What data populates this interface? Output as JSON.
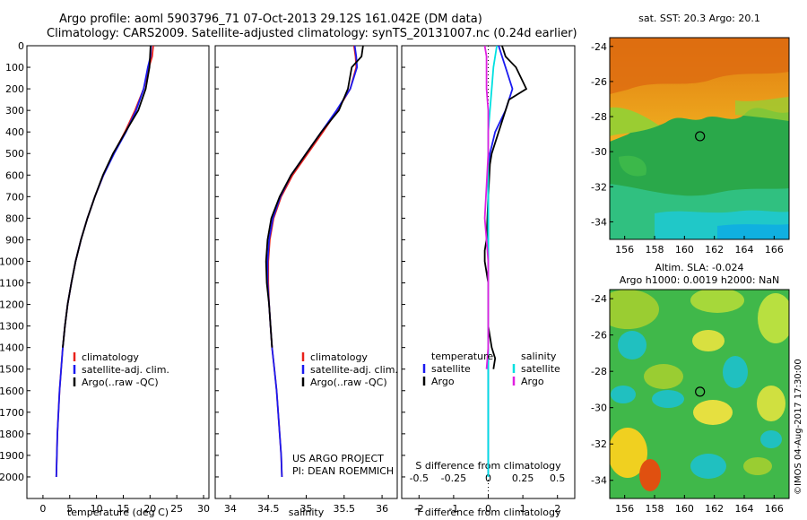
{
  "title_line1": "Argo profile: aoml 5903796_71 07-Oct-2013 29.12S 161.042E (DM data)",
  "title_line2": "Climatology: CARS2009. Satellite-adjusted climatology: synTS_20131007.nc (0.24d earlier)",
  "credit_line1": "US ARGO PROJECT",
  "credit_line2": "PI: DEAN ROEMMICH",
  "sst_title": "sat. SST: 20.3 Argo: 20.1",
  "sla_title1": "Altim. SLA: -0.024",
  "sla_title2": "Argo h1000: 0.0019 h2000: NaN",
  "footer_stamp": "©IMOS 04-Aug-2017 17:30:00",
  "colors": {
    "climatology": "#e8201a",
    "satellite": "#1a1af0",
    "argo": "#000000",
    "sat_salinity": "#00e0e0",
    "argo_salinity": "#e020e0"
  },
  "legend_temp": [
    "climatology",
    "satellite-adj. clim.",
    "Argo(..raw -QC)"
  ],
  "legend_sal": [
    "climatology",
    "satellite-adj. clim.",
    "Argo(..raw -QC)"
  ],
  "legend_diff": {
    "temp_header": "temperature",
    "sal_header": "salinity",
    "temp_items": [
      "satellite",
      "Argo"
    ],
    "sal_items": [
      "satellite",
      "Argo"
    ]
  },
  "chart_data": [
    {
      "type": "line",
      "xlabel": "temperature (deg C)",
      "xlim": [
        -3,
        31
      ],
      "ylim": [
        2100,
        0
      ],
      "xticks": [
        0,
        5,
        10,
        15,
        20,
        25,
        30
      ],
      "yticks": [
        0,
        100,
        200,
        300,
        400,
        500,
        600,
        700,
        800,
        900,
        1000,
        1100,
        1200,
        1300,
        1400,
        1500,
        1600,
        1700,
        1800,
        1900,
        2000
      ],
      "series": [
        {
          "name": "climatology",
          "color": "#e8201a",
          "x": [
            20.6,
            20.4,
            19.8,
            18.8,
            17.2,
            15.3,
            13.2,
            11.3,
            9.7,
            8.3,
            7.1,
            6.1,
            5.3,
            4.6,
            4.1,
            3.7,
            3.4,
            3.1,
            2.9,
            2.7,
            2.6,
            2.5
          ],
          "y": [
            0,
            50,
            100,
            200,
            300,
            400,
            500,
            600,
            700,
            800,
            900,
            1000,
            1100,
            1200,
            1300,
            1400,
            1500,
            1600,
            1700,
            1800,
            1900,
            2000
          ]
        },
        {
          "name": "satellite-adj. clim.",
          "color": "#1a1af0",
          "x": [
            20.2,
            20.1,
            19.6,
            18.8,
            17.4,
            15.5,
            13.3,
            11.3,
            9.7,
            8.3,
            7.1,
            6.1,
            5.3,
            4.6,
            4.1,
            3.7,
            3.4,
            3.1,
            2.9,
            2.7,
            2.6,
            2.5
          ],
          "y": [
            0,
            50,
            100,
            200,
            300,
            400,
            500,
            600,
            700,
            800,
            900,
            1000,
            1100,
            1200,
            1300,
            1400,
            1500,
            1600,
            1700,
            1800,
            1900,
            2000
          ]
        },
        {
          "name": "Argo(..raw -QC)",
          "color": "#000000",
          "x": [
            20.1,
            20.0,
            19.9,
            19.2,
            17.8,
            15.4,
            13.1,
            11.2,
            9.7,
            8.3,
            7.1,
            6.1,
            5.3,
            4.6,
            4.1,
            3.7
          ],
          "y": [
            0,
            50,
            100,
            200,
            300,
            400,
            500,
            600,
            700,
            800,
            900,
            1000,
            1100,
            1200,
            1300,
            1400
          ]
        }
      ]
    },
    {
      "type": "line",
      "xlabel": "salinity",
      "xlim": [
        33.8,
        36.2
      ],
      "ylim": [
        2100,
        0
      ],
      "xticks": [
        34,
        34.5,
        35,
        35.5,
        36
      ],
      "series": [
        {
          "name": "climatology",
          "color": "#e8201a",
          "x": [
            35.63,
            35.65,
            35.66,
            35.58,
            35.41,
            35.22,
            35.02,
            34.82,
            34.67,
            34.57,
            34.52,
            34.5,
            34.5,
            34.51,
            34.53,
            34.55,
            34.58,
            34.61,
            34.63,
            34.65,
            34.67,
            34.68
          ],
          "y": [
            0,
            50,
            100,
            200,
            300,
            400,
            500,
            600,
            700,
            800,
            900,
            1000,
            1100,
            1200,
            1300,
            1400,
            1500,
            1600,
            1700,
            1800,
            1900,
            2000
          ]
        },
        {
          "name": "satellite-adj. clim.",
          "color": "#1a1af0",
          "x": [
            35.64,
            35.66,
            35.67,
            35.58,
            35.4,
            35.2,
            35.0,
            34.8,
            34.66,
            34.56,
            34.51,
            34.49,
            34.49,
            34.51,
            34.53,
            34.55,
            34.58,
            34.61,
            34.63,
            34.65,
            34.67,
            34.68
          ],
          "y": [
            0,
            50,
            100,
            200,
            300,
            400,
            500,
            600,
            700,
            800,
            900,
            1000,
            1100,
            1200,
            1300,
            1400,
            1500,
            1600,
            1700,
            1800,
            1900,
            2000
          ]
        },
        {
          "name": "Argo(..raw -QC)",
          "color": "#000000",
          "x": [
            35.75,
            35.73,
            35.6,
            35.55,
            35.43,
            35.2,
            35.0,
            34.8,
            34.65,
            34.54,
            34.49,
            34.47,
            34.48,
            34.51,
            34.53,
            34.55
          ],
          "y": [
            0,
            50,
            100,
            200,
            300,
            400,
            500,
            600,
            700,
            800,
            900,
            1000,
            1100,
            1200,
            1300,
            1400
          ]
        }
      ]
    },
    {
      "type": "line",
      "xlabel": "T difference from climatology",
      "x2label": "S difference from climatology",
      "xlim": [
        -2.5,
        2.5
      ],
      "ylim": [
        2100,
        0
      ],
      "xticks": [
        -2,
        -1,
        0,
        1,
        2
      ],
      "x2ticks": [
        -0.5,
        -0.25,
        0,
        0.25,
        0.5
      ],
      "x2tick_labels": [
        "-0.5",
        "-0.25",
        "0",
        "0.25",
        "0.5"
      ],
      "series": [
        {
          "name": "temperature satellite",
          "color": "#1a1af0",
          "x": [
            0.3,
            0.4,
            0.5,
            0.7,
            0.5,
            0.2,
            0.05,
            0.0,
            0.0,
            0.0,
            0.0,
            0.0,
            0.0,
            0.0,
            0.0,
            0.0,
            0.0,
            0.0,
            0.0,
            0.0
          ],
          "y": [
            0,
            50,
            100,
            200,
            300,
            400,
            500,
            600,
            700,
            800,
            900,
            1000,
            1100,
            1200,
            1300,
            1400,
            1500,
            1600,
            1800,
            2000
          ]
        },
        {
          "name": "temperature Argo",
          "color": "#000000",
          "x": [
            0.4,
            0.5,
            0.8,
            1.1,
            0.6,
            0.3,
            0.1,
            0.05,
            0.0,
            -0.05,
            -0.1,
            -0.1,
            0.0,
            0.0,
            0.1,
            0.2,
            0.15
          ],
          "y": [
            0,
            50,
            100,
            200,
            250,
            400,
            500,
            550,
            700,
            900,
            950,
            1000,
            1100,
            1300,
            1400,
            1450,
            1500
          ]
        },
        {
          "name": "salinity satellite",
          "color": "#00e0e0",
          "x": [
            0.25,
            0.2,
            0.15,
            0.1,
            0.05,
            0.0,
            0.0,
            0.0,
            0.0,
            0.0,
            0.0,
            0.0,
            0.0,
            0.0,
            0.0,
            0.0,
            0.0
          ],
          "y": [
            0,
            50,
            100,
            200,
            300,
            400,
            500,
            600,
            700,
            800,
            900,
            1000,
            1100,
            1300,
            1500,
            1700,
            2000
          ]
        },
        {
          "name": "salinity Argo",
          "color": "#e020e0",
          "x": [
            -0.1,
            -0.05,
            -0.05,
            0.0,
            0.0,
            0.0,
            -0.05,
            -0.1,
            -0.05,
            0.0,
            0.0,
            0.0,
            -0.05
          ],
          "y": [
            0,
            50,
            200,
            300,
            400,
            500,
            650,
            800,
            900,
            1000,
            1200,
            1400,
            1500
          ]
        }
      ]
    },
    {
      "type": "heatmap",
      "title": "sat. SST: 20.3 Argo: 20.1",
      "xticks": [
        156,
        158,
        160,
        162,
        164,
        166
      ],
      "yticks": [
        -24,
        -26,
        -28,
        -30,
        -32,
        -34
      ],
      "xlim": [
        155,
        167
      ],
      "ylim": [
        -35,
        -23.5
      ],
      "marker": {
        "lon": 161.04,
        "lat": -29.12
      }
    },
    {
      "type": "heatmap",
      "title": "Altim. SLA: -0.024",
      "xticks": [
        156,
        158,
        160,
        162,
        164,
        166
      ],
      "yticks": [
        -24,
        -26,
        -28,
        -30,
        -32,
        -34
      ],
      "xlim": [
        155,
        167
      ],
      "ylim": [
        -35,
        -23.5
      ],
      "marker": {
        "lon": 161.04,
        "lat": -29.12
      }
    }
  ]
}
